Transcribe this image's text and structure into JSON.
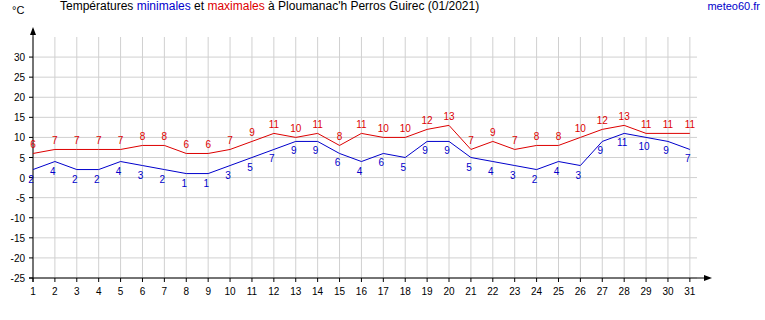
{
  "chart_data": {
    "type": "line",
    "title": "Températures minimales et maximales à Ploumanac'h Perros Guirec (01/2021)",
    "ylabel": "°C",
    "annotation": "meteo60.fr",
    "x": [
      1,
      2,
      3,
      4,
      5,
      6,
      7,
      8,
      9,
      10,
      11,
      12,
      13,
      14,
      15,
      16,
      17,
      18,
      19,
      20,
      21,
      22,
      23,
      24,
      25,
      26,
      27,
      28,
      29,
      30,
      31
    ],
    "xlim": [
      1,
      31.6
    ],
    "xticks": [
      1,
      2,
      3,
      4,
      5,
      6,
      7,
      8,
      9,
      10,
      11,
      12,
      13,
      14,
      15,
      16,
      17,
      18,
      19,
      20,
      21,
      22,
      23,
      24,
      25,
      26,
      27,
      28,
      29,
      30,
      31
    ],
    "ylim": [
      -25,
      35
    ],
    "yticks": [
      -25,
      -20,
      -15,
      -10,
      -5,
      0,
      5,
      10,
      15,
      20,
      25,
      30
    ],
    "grid": true,
    "data_labels": true,
    "series": [
      {
        "name": "minimales",
        "color": "#0000cc",
        "values": [
          2,
          4,
          2,
          2,
          4,
          3,
          2,
          1,
          1,
          3,
          5,
          7,
          9,
          9,
          6,
          4,
          6,
          5,
          9,
          9,
          5,
          4,
          3,
          2,
          4,
          3,
          9,
          11,
          10,
          9,
          7
        ]
      },
      {
        "name": "maximales",
        "color": "#dd0000",
        "values": [
          6,
          7,
          7,
          7,
          7,
          8,
          8,
          6,
          6,
          7,
          9,
          11,
          10,
          11,
          8,
          11,
          10,
          10,
          12,
          13,
          7,
          9,
          7,
          8,
          8,
          10,
          12,
          13,
          11,
          11,
          11
        ]
      }
    ]
  }
}
